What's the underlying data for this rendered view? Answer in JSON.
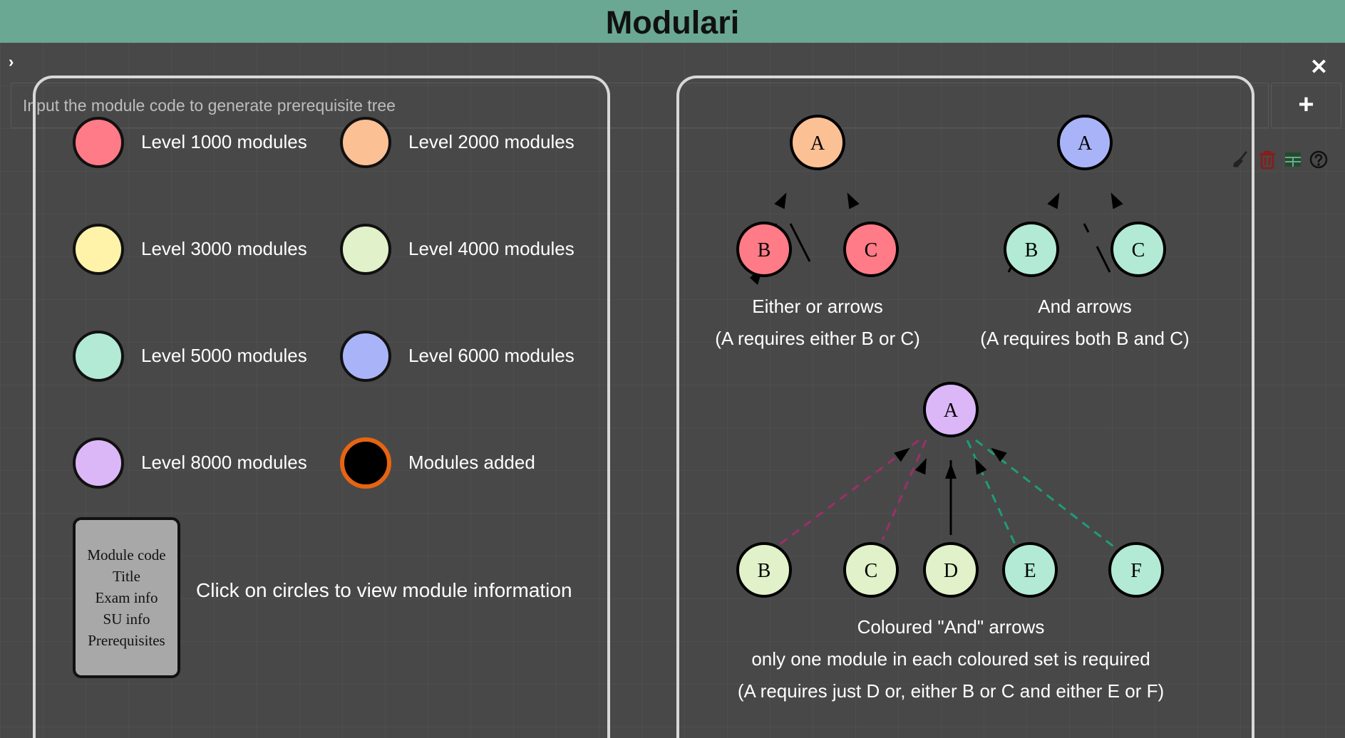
{
  "header": {
    "title": "Modulari"
  },
  "controls": {
    "toggle_glyph": "›",
    "close_glyph": "✕",
    "add_glyph": "+",
    "input_placeholder": "Input the module code to generate prerequisite tree",
    "input_value": ""
  },
  "toolbar": {
    "icons": [
      "broom-icon",
      "trash-icon",
      "table-icon",
      "help-icon"
    ],
    "colors": {
      "broom": "#222222",
      "trash": "#8b1a1a",
      "table": "#244a2c",
      "help": "#111111"
    }
  },
  "legend": {
    "items": [
      {
        "label": "Level 1000 modules",
        "color": "#ff7b87",
        "border": "#111111"
      },
      {
        "label": "Level 2000 modules",
        "color": "#fcc095",
        "border": "#111111"
      },
      {
        "label": "Level 3000 modules",
        "color": "#fef3a9",
        "border": "#111111"
      },
      {
        "label": "Level 4000 modules",
        "color": "#e1f1c9",
        "border": "#111111"
      },
      {
        "label": "Level 5000 modules",
        "color": "#b2ead6",
        "border": "#111111"
      },
      {
        "label": "Level 6000 modules",
        "color": "#a9b4f8",
        "border": "#111111"
      },
      {
        "label": "Level 8000 modules",
        "color": "#dcb7f7",
        "border": "#111111"
      },
      {
        "label": "Modules added",
        "color": "#000000",
        "border": "#e66412"
      }
    ],
    "info_box_lines": [
      "Module code",
      "Title",
      "Exam info",
      "SU info",
      "Prerequisites"
    ],
    "click_note": "Click on circles to view module information"
  },
  "examples": {
    "either_or": {
      "nodes": {
        "top": "A",
        "left": "B",
        "right": "C"
      },
      "caption_title": "Either or arrows",
      "caption_detail": "(A requires either B or C)"
    },
    "and_arrows": {
      "nodes": {
        "top": "A",
        "left": "B",
        "right": "C"
      },
      "caption_title": "And arrows",
      "caption_detail": "(A requires both B and C)"
    },
    "coloured_and": {
      "nodes": {
        "top": "A",
        "b": "B",
        "c": "C",
        "d": "D",
        "e": "E",
        "f": "F"
      },
      "set_colors": {
        "set1": "#9b2f6a",
        "set2": "#1f9c7a"
      },
      "caption_title": "Coloured \"And\" arrows",
      "caption_line2": "only one module in each coloured set is required",
      "caption_detail": "(A requires just D or, either B or C and either E or F)"
    }
  }
}
